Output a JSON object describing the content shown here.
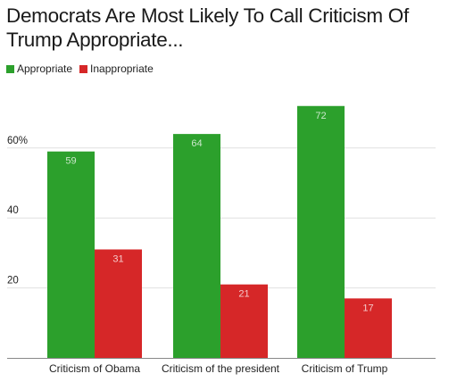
{
  "chart_data": {
    "type": "bar",
    "title": "Democrats Are Most Likely To Call Criticism Of Trump Appropriate...",
    "categories": [
      "Criticism of Obama",
      "Criticism of the president",
      "Criticism of Trump"
    ],
    "series": [
      {
        "name": "Appropriate",
        "color": "#2ca02c",
        "values": [
          59,
          64,
          72
        ]
      },
      {
        "name": "Inappropriate",
        "color": "#d62728",
        "values": [
          31,
          21,
          17
        ]
      }
    ],
    "yticks": [
      "20",
      "40",
      "60%"
    ],
    "ylim": [
      0,
      80
    ],
    "grid": true,
    "legend_position": "top-left"
  }
}
